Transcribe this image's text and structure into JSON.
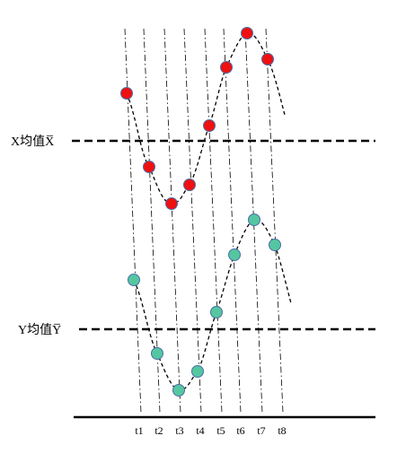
{
  "labels": {
    "x_mean": "X均值X̅",
    "y_mean": "Y均值Y̅"
  },
  "ticks": [
    "t1",
    "t2",
    "t3",
    "t4",
    "t5",
    "t6",
    "t7",
    "t8"
  ],
  "series_x": {
    "color": "#ee1111",
    "count": 8
  },
  "series_y": {
    "color": "#55c7a0",
    "count": 8
  },
  "colors": {
    "line": "#000000",
    "stroke": "#4a6da8"
  }
}
